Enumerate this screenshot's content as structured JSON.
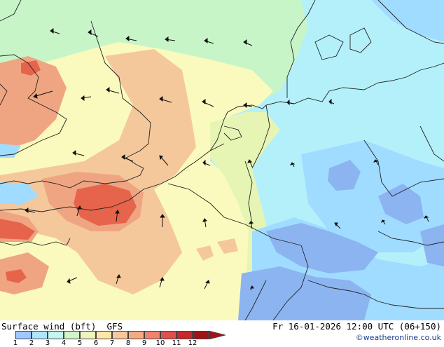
{
  "footer": {
    "title_left": "Surface wind (bft)  GFS",
    "title_right": "Fr 16-01-2026 12:00 UTC (06+150)",
    "credit": "©weatheronline.co.uk"
  },
  "legend": {
    "labels": [
      "1",
      "2",
      "3",
      "4",
      "5",
      "6",
      "7",
      "8",
      "9",
      "10",
      "11",
      "12"
    ],
    "colors": [
      "#a0c8ff",
      "#aee6ff",
      "#c4f5ef",
      "#d2f5c8",
      "#f0f5be",
      "#ffe6aa",
      "#f6c89b",
      "#f5aa82",
      "#f0826e",
      "#e0504b",
      "#c8282d",
      "#a01419"
    ],
    "arrow_color": "#a01419"
  },
  "map": {
    "sea_color": "#b4f0fa",
    "region_colors": {
      "light_yellow": "#fafabe",
      "yellow_green": "#e6f5b4",
      "light_green": "#c8f5c8",
      "peach": "#f5c89b",
      "orange": "#f0a582",
      "red_orange": "#e6644b",
      "light_blue": "#a0dcff",
      "blue": "#8cb4f0"
    },
    "wind_arrows_icon": "wind-direction-arrow-icon"
  }
}
